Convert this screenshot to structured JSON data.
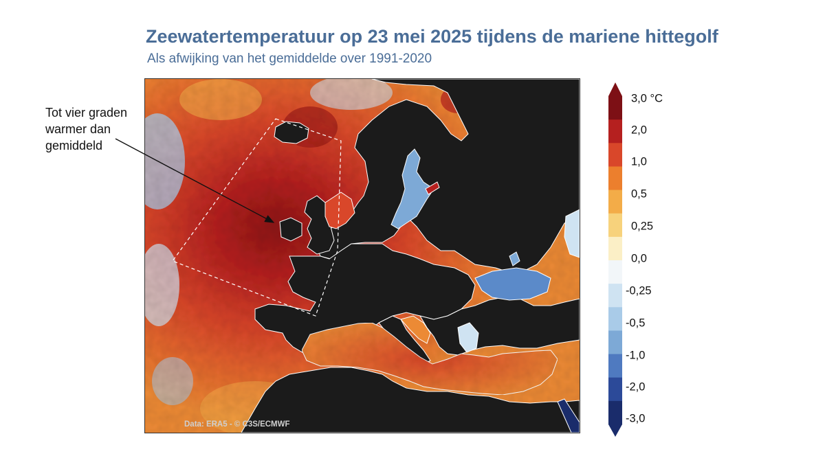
{
  "title": "Zeewatertemperatuur op 23 mei 2025 tijdens de mariene hittegolf",
  "subtitle": "Als afwijking van het gemiddelde over 1991-2020",
  "annotation": {
    "lines": [
      "Tot vier graden",
      "warmer dan",
      "gemiddeld"
    ]
  },
  "credit": "Data: ERA5 - © C3S/ECMWF",
  "legend": {
    "labels": [
      "3,0 °C",
      "2,0",
      "1,0",
      "0,5",
      "0,25",
      "0,0",
      "-0,25",
      "-0,5",
      "-1,0",
      "-2,0",
      "-3,0"
    ],
    "colors": [
      "#7d1015",
      "#b5201f",
      "#d9472a",
      "#ec7f2d",
      "#f3ac48",
      "#f7d27c",
      "#fbefc6",
      "#f2f6f9",
      "#cfe3f2",
      "#a9cbe8",
      "#7da9d6",
      "#4f7ac0",
      "#2c4a99",
      "#1a2c6b"
    ],
    "top_color": "#7d1015",
    "bottom_color": "#1a2c6b"
  },
  "colors": {
    "title": "#4a6d97",
    "land": "#1b1b1b",
    "coast": "#ffffff",
    "warm_dark": "#9b1a16",
    "warm": "#d9472a",
    "warm_light": "#ec8a35",
    "cool": "#7da9d6",
    "cool_light": "#cfe3f2"
  }
}
